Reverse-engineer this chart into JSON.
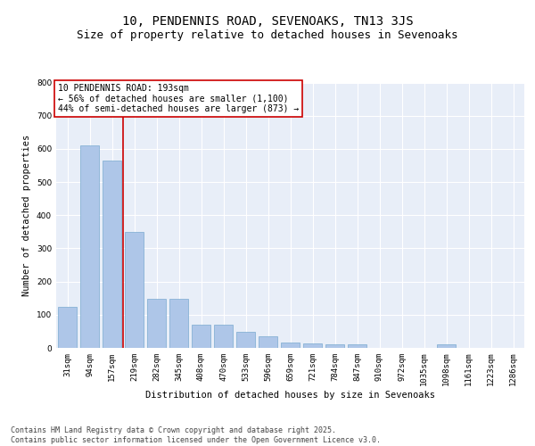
{
  "title": "10, PENDENNIS ROAD, SEVENOAKS, TN13 3JS",
  "subtitle": "Size of property relative to detached houses in Sevenoaks",
  "xlabel": "Distribution of detached houses by size in Sevenoaks",
  "ylabel": "Number of detached properties",
  "categories": [
    "31sqm",
    "94sqm",
    "157sqm",
    "219sqm",
    "282sqm",
    "345sqm",
    "408sqm",
    "470sqm",
    "533sqm",
    "596sqm",
    "659sqm",
    "721sqm",
    "784sqm",
    "847sqm",
    "910sqm",
    "972sqm",
    "1035sqm",
    "1098sqm",
    "1161sqm",
    "1223sqm",
    "1286sqm"
  ],
  "values": [
    125,
    610,
    565,
    350,
    148,
    148,
    70,
    70,
    48,
    35,
    15,
    14,
    10,
    10,
    0,
    0,
    0,
    10,
    0,
    0,
    0
  ],
  "bar_color": "#aec6e8",
  "bar_edge_color": "#7aaad0",
  "vline_x": 2.5,
  "vline_color": "#cc0000",
  "annotation_text": "10 PENDENNIS ROAD: 193sqm\n← 56% of detached houses are smaller (1,100)\n44% of semi-detached houses are larger (873) →",
  "annotation_box_color": "#ffffff",
  "annotation_box_edge": "#cc0000",
  "ylim": [
    0,
    800
  ],
  "yticks": [
    0,
    100,
    200,
    300,
    400,
    500,
    600,
    700,
    800
  ],
  "background_color": "#e8eef8",
  "grid_color": "#ffffff",
  "footer": "Contains HM Land Registry data © Crown copyright and database right 2025.\nContains public sector information licensed under the Open Government Licence v3.0.",
  "title_fontsize": 10,
  "subtitle_fontsize": 9,
  "axis_label_fontsize": 7.5,
  "tick_fontsize": 6.5,
  "annotation_fontsize": 7,
  "footer_fontsize": 6
}
